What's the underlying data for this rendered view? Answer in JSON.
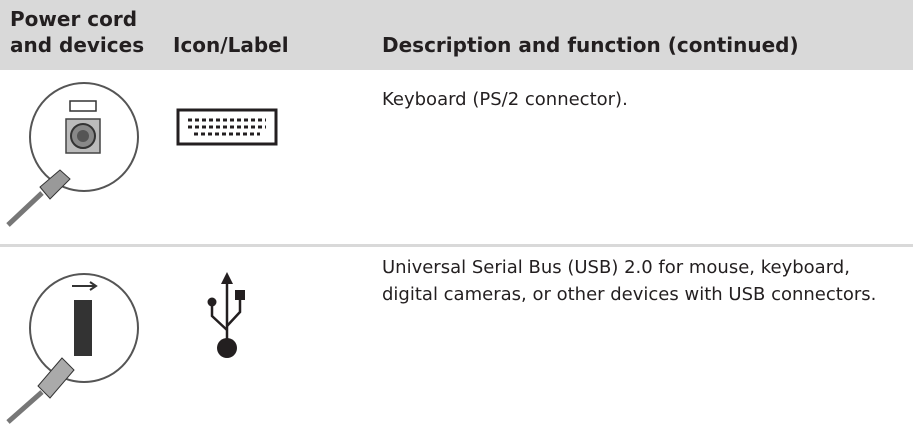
{
  "table": {
    "headers": [
      "Power cord and devices",
      "Icon/Label",
      "Description and function (continued)"
    ],
    "rows": [
      {
        "description": "Keyboard (PS/2 connector)."
      },
      {
        "description": "Universal Serial Bus (USB) 2.0 for mouse, keyboard, digital cameras, or other devices with USB connectors."
      }
    ]
  }
}
